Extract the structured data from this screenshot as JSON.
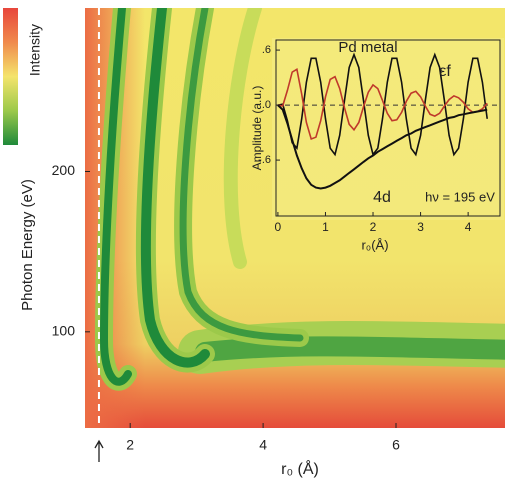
{
  "chart_data": [
    {
      "type": "heatmap",
      "xlabel": "r₀ (Å)",
      "ylabel": "Photon Energy (eV)",
      "colorbar_label": "Intensity",
      "colormap": [
        "#e8463c",
        "#f08a4c",
        "#f4e46c",
        "#9cc94a",
        "#1f8a3a"
      ],
      "xlim": [
        1.32,
        7.64
      ],
      "ylim": [
        40,
        302
      ],
      "xticks": [
        2,
        4,
        6
      ],
      "yticks": [
        100,
        200
      ],
      "reference_x": 1.53
    },
    {
      "type": "line",
      "title": "Pd metal",
      "xlabel": "r₀(Å)",
      "ylabel": "Amplitude (a.u.)",
      "annotation": "hν = 195 eV",
      "x": [
        0,
        0.1,
        0.2,
        0.3,
        0.4,
        0.5,
        0.6,
        0.7,
        0.8,
        0.9,
        1.0,
        1.1,
        1.2,
        1.3,
        1.4,
        1.5,
        1.6,
        1.7,
        1.8,
        1.9,
        2.0,
        2.1,
        2.2,
        2.3,
        2.4,
        2.5,
        2.6,
        2.7,
        2.8,
        2.9,
        3.0,
        3.1,
        3.2,
        3.3,
        3.4,
        3.5,
        3.6,
        3.7,
        3.8,
        3.9,
        4.0,
        4.1,
        4.2,
        4.3,
        4.4
      ],
      "series": [
        {
          "name": "εf",
          "color": "#111111",
          "values": [
            0,
            0.01,
            -0.17,
            -0.41,
            -0.47,
            -0.15,
            0.25,
            0.51,
            0.51,
            0.25,
            -0.15,
            -0.47,
            -0.54,
            -0.33,
            0.05,
            0.41,
            0.55,
            0.41,
            0.05,
            -0.33,
            -0.54,
            -0.47,
            -0.15,
            0.25,
            0.51,
            0.51,
            0.25,
            -0.15,
            -0.47,
            -0.54,
            -0.33,
            0.05,
            0.41,
            0.55,
            0.41,
            0.05,
            -0.33,
            -0.54,
            -0.47,
            -0.15,
            0.25,
            0.51,
            0.51,
            0.25,
            -0.15
          ]
        },
        {
          "color": "#c0392b",
          "values": [
            0,
            -0.01,
            0.16,
            0.36,
            0.39,
            0.12,
            -0.19,
            -0.37,
            -0.35,
            -0.17,
            0.09,
            0.28,
            0.31,
            0.18,
            -0.03,
            -0.21,
            -0.27,
            -0.19,
            -0.02,
            0.14,
            0.22,
            0.18,
            0.05,
            -0.09,
            -0.17,
            -0.16,
            -0.08,
            0.04,
            0.13,
            0.15,
            0.09,
            -0.01,
            -0.1,
            -0.12,
            -0.09,
            -0.01,
            0.06,
            0.1,
            0.08,
            0.03,
            -0.04,
            -0.08,
            -0.07,
            -0.04,
            0.02
          ]
        },
        {
          "name": "4d",
          "color": "#111111",
          "values": [
            0,
            -0.05,
            -0.2,
            -0.38,
            -0.55,
            -0.69,
            -0.8,
            -0.87,
            -0.9,
            -0.91,
            -0.9,
            -0.88,
            -0.85,
            -0.82,
            -0.78,
            -0.74,
            -0.7,
            -0.66,
            -0.62,
            -0.58,
            -0.55,
            -0.51,
            -0.48,
            -0.45,
            -0.42,
            -0.39,
            -0.36,
            -0.33,
            -0.31,
            -0.28,
            -0.26,
            -0.24,
            -0.22,
            -0.2,
            -0.18,
            -0.16,
            -0.14,
            -0.13,
            -0.11,
            -0.1,
            -0.09,
            -0.08,
            -0.07,
            -0.06,
            -0.05
          ]
        }
      ],
      "xlim": [
        -0.04,
        4.67
      ],
      "ylim": [
        -1.21,
        0.71
      ],
      "xticks": [
        0,
        1,
        2,
        3,
        4
      ],
      "yticks": [
        {
          "value": 0.6,
          "label": ".6"
        },
        {
          "value": 0.0,
          "label": ".0"
        },
        {
          "value": -0.6,
          "label": "-.6"
        }
      ],
      "zero_line": true
    }
  ]
}
